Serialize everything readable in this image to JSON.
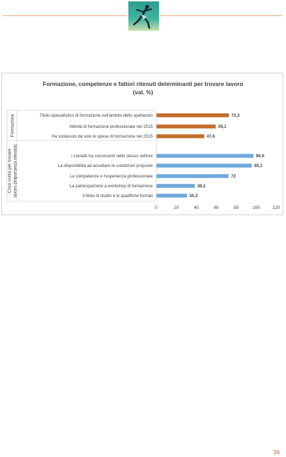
{
  "page": {
    "number": "26"
  },
  "logo": {
    "icon": "dancer-logo"
  },
  "chart_data": {
    "type": "bar",
    "orientation": "horizontal",
    "title": "Formazione, competenze e fattori ritenuti determinanti per trovare lavoro",
    "subtitle": "(val. %)",
    "xlim": [
      0,
      120
    ],
    "xticks": [
      "0",
      "20",
      "40",
      "60",
      "80",
      "100",
      "120"
    ],
    "grid": false,
    "groups": [
      {
        "label": "Formazione",
        "color": "#c46b2b",
        "categories": [
          "Titolo specialistico di formazione nell'ambito dello spettacolo",
          "Attività di formazione professionale nel 2015",
          "Ha sostenuto da solo le spese di formazione nel 2015"
        ],
        "values": [
          72.3,
          59.1,
          47.6
        ],
        "value_labels": [
          "72,3",
          "59,1",
          "47,6"
        ]
      },
      {
        "label": "Cosa conta per trovare lavoro (importanza elevata)",
        "color": "#6fa8dc",
        "categories": [
          "I contatti tra conoscenti nello stesso settore",
          "La disponibilità ad accettare le condizioni proposte",
          "Le competenze e l'esperienza professionale",
          "La partecipazione a workshop di formazione",
          "Il titolo di studio e le qualifiche formali"
        ],
        "values": [
          96.9,
          95.1,
          72,
          38.2,
          30.3
        ],
        "value_labels": [
          "96,9",
          "95,1",
          "72",
          "38,2",
          "30,3"
        ]
      }
    ]
  }
}
